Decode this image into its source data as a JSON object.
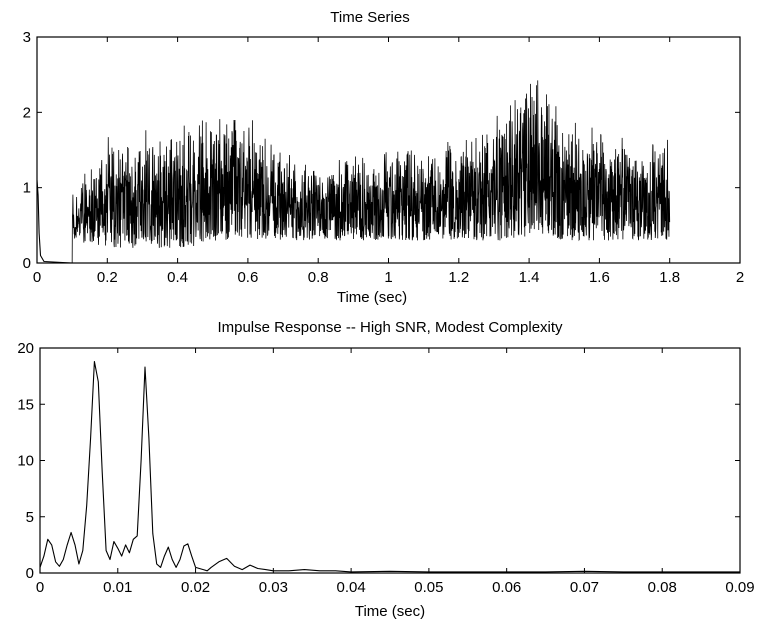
{
  "chart_data": [
    {
      "type": "line",
      "title": "Time Series",
      "xlabel": "Time (sec)",
      "ylabel": "",
      "xlim": [
        0,
        2
      ],
      "ylim": [
        0,
        3
      ],
      "xticks": [
        0,
        0.2,
        0.4,
        0.6,
        0.8,
        1,
        1.2,
        1.4,
        1.6,
        1.8,
        2
      ],
      "xtick_labels": [
        "0",
        "0.2",
        "0.4",
        "0.6",
        "0.8",
        "1",
        "1.2",
        "1.4",
        "1.6",
        "1.8",
        "2"
      ],
      "yticks": [
        0,
        1,
        2,
        3
      ],
      "ytick_labels": [
        "0",
        "1",
        "2",
        "3"
      ],
      "series": [
        {
          "x": [
            0,
            0.003,
            0.008,
            0.015,
            0.03,
            0.1,
            0.1,
            0.2,
            0.3,
            0.4,
            0.5,
            0.55,
            0.58,
            0.62,
            0.7,
            0.8,
            0.9,
            1.0,
            1.1,
            1.2,
            1.3,
            1.35,
            1.4,
            1.45,
            1.5,
            1.6,
            1.7,
            1.8
          ],
          "upper": [
            1.1,
            1.0,
            0.5,
            0.1,
            0.0,
            0.0,
            1.0,
            1.7,
            1.8,
            1.9,
            2.0,
            2.1,
            2.3,
            2.0,
            1.5,
            1.3,
            1.5,
            1.6,
            1.6,
            1.7,
            2.0,
            2.3,
            2.7,
            2.4,
            2.0,
            1.8,
            1.7,
            1.7
          ],
          "lower": [
            0.0,
            0.0,
            0.0,
            0.0,
            0.0,
            0.0,
            0.3,
            0.2,
            0.2,
            0.2,
            0.25,
            0.3,
            0.35,
            0.3,
            0.3,
            0.3,
            0.3,
            0.3,
            0.3,
            0.3,
            0.3,
            0.3,
            0.35,
            0.35,
            0.3,
            0.3,
            0.3,
            0.3
          ]
        }
      ]
    },
    {
      "type": "line",
      "title": "Impulse Response -- High SNR, Modest Complexity",
      "xlabel": "Time (sec)",
      "ylabel": "",
      "xlim": [
        0,
        0.09
      ],
      "ylim": [
        0,
        20
      ],
      "xticks": [
        0,
        0.01,
        0.02,
        0.03,
        0.04,
        0.05,
        0.06,
        0.07,
        0.08,
        0.09
      ],
      "xtick_labels": [
        "0",
        "0.01",
        "0.02",
        "0.03",
        "0.04",
        "0.05",
        "0.06",
        "0.07",
        "0.08",
        "0.09"
      ],
      "yticks": [
        0,
        5,
        10,
        15,
        20
      ],
      "ytick_labels": [
        "0",
        "5",
        "10",
        "15",
        "20"
      ],
      "series": [
        {
          "x": [
            0,
            0.0005,
            0.001,
            0.0015,
            0.002,
            0.0025,
            0.003,
            0.0035,
            0.004,
            0.0045,
            0.005,
            0.0055,
            0.006,
            0.0065,
            0.007,
            0.0075,
            0.008,
            0.0085,
            0.009,
            0.0095,
            0.01,
            0.0105,
            0.011,
            0.0115,
            0.012,
            0.0125,
            0.013,
            0.0135,
            0.014,
            0.0145,
            0.015,
            0.0155,
            0.016,
            0.0165,
            0.017,
            0.0175,
            0.018,
            0.0185,
            0.019,
            0.0195,
            0.02,
            0.0205,
            0.021,
            0.0215,
            0.022,
            0.023,
            0.024,
            0.025,
            0.026,
            0.027,
            0.028,
            0.029,
            0.03,
            0.032,
            0.034,
            0.036,
            0.038,
            0.04,
            0.045,
            0.05,
            0.055,
            0.06,
            0.065,
            0.07,
            0.075,
            0.08,
            0.085,
            0.09
          ],
          "y": [
            0.5,
            1.5,
            3.0,
            2.5,
            1.0,
            0.6,
            1.2,
            2.5,
            3.6,
            2.5,
            0.8,
            2.0,
            6.0,
            12.0,
            18.8,
            17.0,
            9.0,
            2.0,
            1.2,
            2.8,
            2.2,
            1.5,
            2.5,
            1.8,
            3.0,
            3.3,
            10.0,
            18.3,
            12.0,
            3.5,
            0.8,
            0.5,
            1.5,
            2.3,
            1.2,
            0.5,
            1.2,
            2.4,
            2.6,
            1.5,
            0.5,
            0.4,
            0.3,
            0.2,
            0.5,
            1.0,
            1.3,
            0.6,
            0.3,
            0.7,
            0.4,
            0.3,
            0.2,
            0.2,
            0.3,
            0.2,
            0.2,
            0.1,
            0.15,
            0.1,
            0.1,
            0.1,
            0.1,
            0.15,
            0.1,
            0.1,
            0.1,
            0.1
          ]
        }
      ]
    }
  ]
}
